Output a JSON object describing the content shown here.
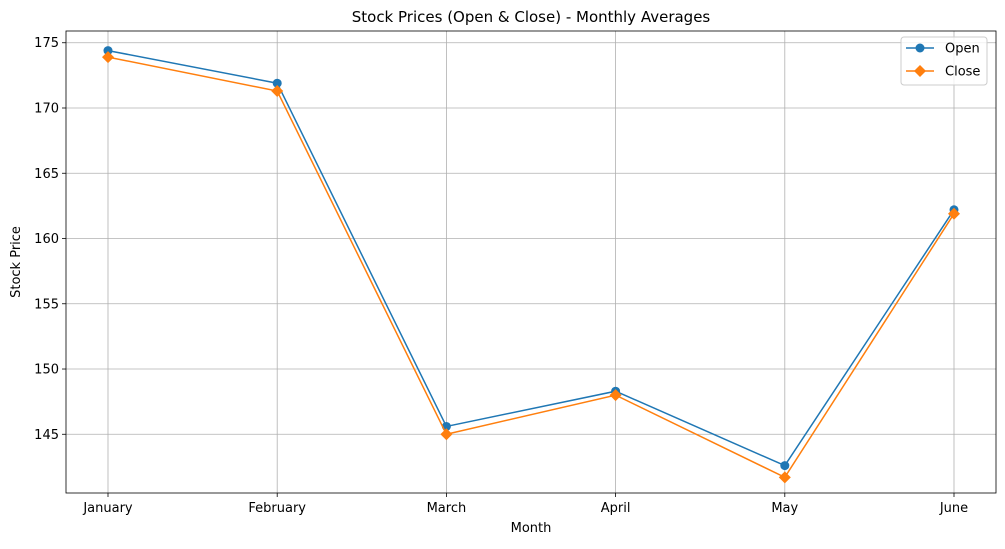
{
  "chart_data": {
    "type": "line",
    "title": "Stock Prices (Open & Close) - Monthly Averages",
    "xlabel": "Month",
    "ylabel": "Stock Price",
    "categories": [
      "January",
      "February",
      "March",
      "April",
      "May",
      "June"
    ],
    "series": [
      {
        "name": "Open",
        "values": [
          174.4,
          171.9,
          145.6,
          148.3,
          142.6,
          162.2
        ],
        "color": "#1f77b4",
        "marker": "circle"
      },
      {
        "name": "Close",
        "values": [
          173.9,
          171.3,
          145.0,
          148.0,
          141.7,
          161.9
        ],
        "color": "#ff7f0e",
        "marker": "diamond"
      }
    ],
    "ylim": [
      140.5,
      175.9
    ],
    "yticks": [
      145,
      150,
      155,
      160,
      165,
      170,
      175
    ],
    "ytick_labels": [
      "145",
      "150",
      "155",
      "160",
      "165",
      "170",
      "175"
    ],
    "grid": true,
    "legend": "top-right"
  }
}
